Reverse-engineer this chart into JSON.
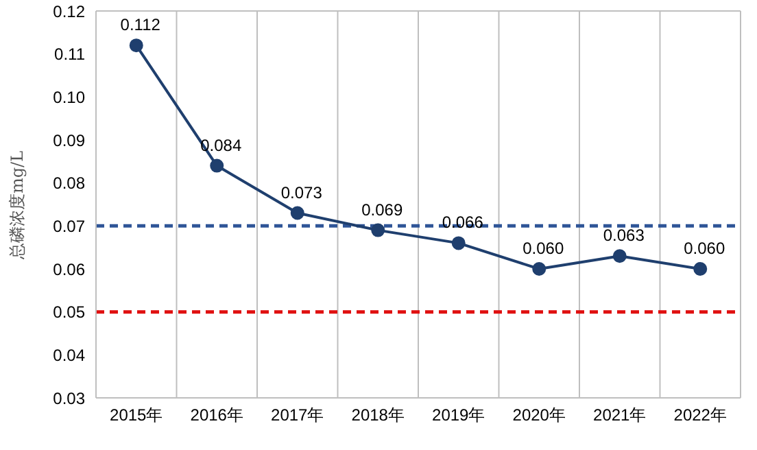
{
  "chart_data": {
    "type": "line",
    "ylabel": "总磷浓度mg/L",
    "categories": [
      "2015年",
      "2016年",
      "2017年",
      "2018年",
      "2019年",
      "2020年",
      "2021年",
      "2022年"
    ],
    "series": [
      {
        "color": "#1f3f6e",
        "values": [
          0.112,
          0.084,
          0.073,
          0.069,
          0.066,
          0.06,
          0.063,
          0.06
        ],
        "value_labels": [
          "0.112",
          "0.084",
          "0.073",
          "0.069",
          "0.066",
          "0.060",
          "0.063",
          "0.060"
        ]
      }
    ],
    "ylim": [
      0.03,
      0.12
    ],
    "yticks": [
      {
        "value": 0.03,
        "label": "0.03"
      },
      {
        "value": 0.04,
        "label": "0.04"
      },
      {
        "value": 0.05,
        "label": "0.05"
      },
      {
        "value": 0.06,
        "label": "0.06"
      },
      {
        "value": 0.07,
        "label": "0.07"
      },
      {
        "value": 0.08,
        "label": "0.08"
      },
      {
        "value": 0.09,
        "label": "0.09"
      },
      {
        "value": 0.1,
        "label": "0.10"
      },
      {
        "value": 0.11,
        "label": "0.11"
      },
      {
        "value": 0.12,
        "label": "0.12"
      }
    ],
    "ref_lines": [
      {
        "axis": "y",
        "value": 0.07,
        "color": "#2f5597",
        "line_style": "dashed"
      },
      {
        "axis": "y",
        "value": 0.05,
        "color": "#e01010",
        "line_style": "dashed"
      }
    ],
    "grid": "x",
    "legend": false,
    "marker": "circle",
    "line_style": "solid"
  }
}
